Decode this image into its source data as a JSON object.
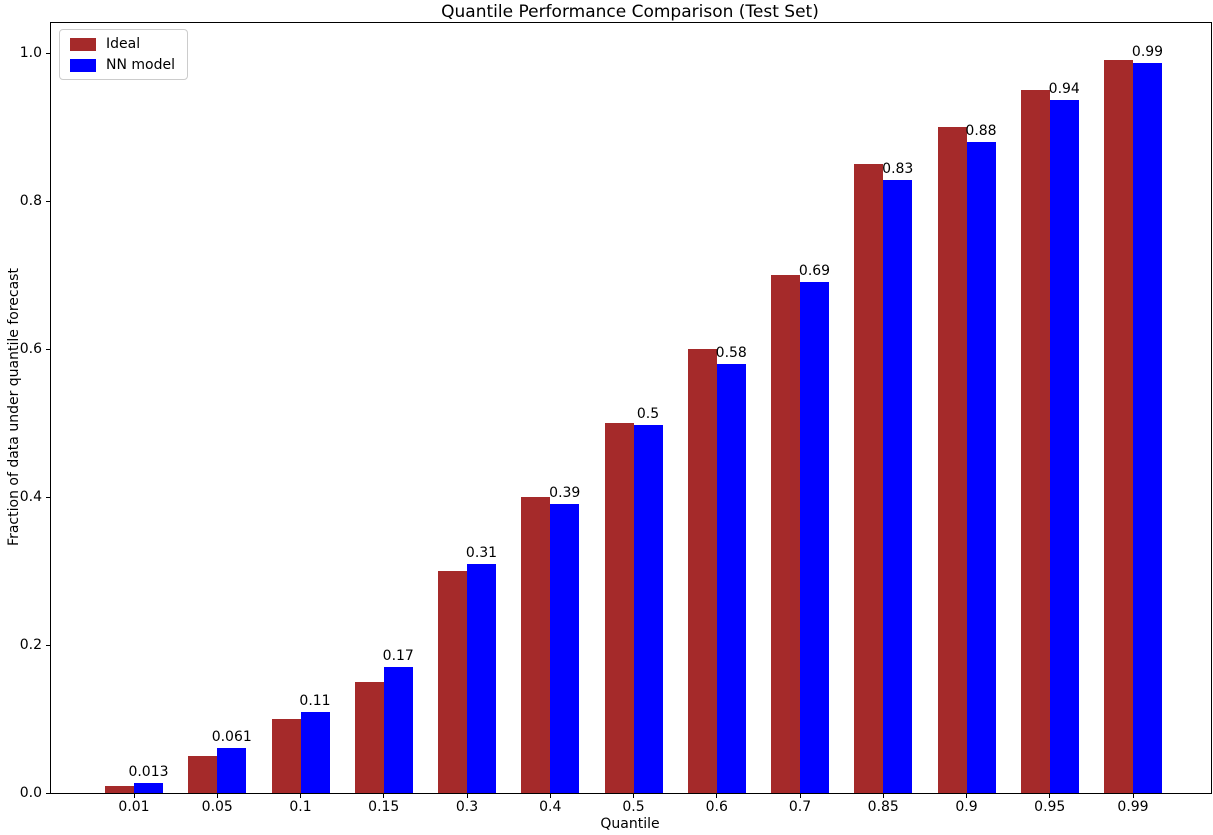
{
  "figure": {
    "title": "Quantile Performance Comparison (Test Set)",
    "xlabel": "Quantile",
    "ylabel": "Fraction of data under quantile forecast"
  },
  "legend": {
    "position": "upper left",
    "items": [
      {
        "label": "Ideal",
        "color": "#a52a2a"
      },
      {
        "label": "NN model",
        "color": "#0000ff"
      }
    ]
  },
  "chart_data": {
    "type": "bar",
    "title": "Quantile Performance Comparison (Test Set)",
    "xlabel": "Quantile",
    "ylabel": "Fraction of data under quantile forecast",
    "categories": [
      "0.01",
      "0.05",
      "0.1",
      "0.15",
      "0.3",
      "0.4",
      "0.5",
      "0.6",
      "0.7",
      "0.85",
      "0.9",
      "0.95",
      "0.99"
    ],
    "series": [
      {
        "name": "Ideal",
        "color": "#a52a2a",
        "values": [
          0.01,
          0.05,
          0.1,
          0.15,
          0.3,
          0.4,
          0.5,
          0.6,
          0.7,
          0.85,
          0.9,
          0.95,
          0.99
        ]
      },
      {
        "name": "NN model",
        "color": "#0000ff",
        "values": [
          0.013,
          0.061,
          0.11,
          0.17,
          0.31,
          0.39,
          0.497,
          0.58,
          0.69,
          0.828,
          0.88,
          0.937,
          0.987
        ],
        "value_labels": [
          "0.013",
          "0.061",
          "0.11",
          "0.17",
          "0.31",
          "0.39",
          "0.5",
          "0.58",
          "0.69",
          "0.83",
          "0.88",
          "0.94",
          "0.99"
        ]
      }
    ],
    "y_ticks": [
      "0.0",
      "0.2",
      "0.4",
      "0.6",
      "0.8",
      "1.0"
    ],
    "y_tick_values": [
      0.0,
      0.2,
      0.4,
      0.6,
      0.8,
      1.0
    ],
    "ylim": [
      0.0,
      1.04
    ],
    "grid": false,
    "legend_position": "upper left",
    "background": "#ffffff"
  }
}
